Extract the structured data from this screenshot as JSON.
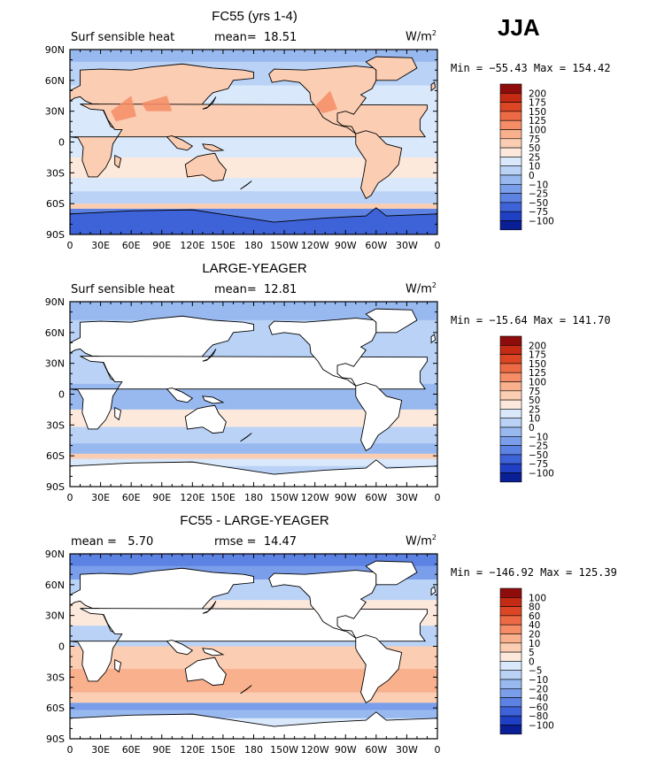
{
  "season": "JJA",
  "axes": {
    "lat_labels": [
      "90N",
      "60N",
      "30N",
      "0",
      "30S",
      "60S",
      "90S"
    ],
    "lon_labels": [
      "0",
      "30E",
      "60E",
      "90E",
      "120E",
      "150E",
      "180",
      "150W",
      "120W",
      "90W",
      "60W",
      "30W",
      "0"
    ]
  },
  "colors": {
    "warm": [
      "#fde9dc",
      "#fbcdb3",
      "#f9b08d",
      "#f68d66",
      "#ee6a44",
      "#dd4624",
      "#c42a14",
      "#8e0c0b"
    ],
    "cool": [
      "#d9e8fb",
      "#b9d2f6",
      "#98b9f0",
      "#7a9eea",
      "#5c82e3",
      "#3e62d7",
      "#1f40c4",
      "#0a1f96"
    ]
  },
  "panels": [
    {
      "title": "FC55 (yrs 1-4)",
      "left_header": "Surf sensible heat",
      "center_header": "mean=  18.51",
      "units": "W/m",
      "units_exp": "2",
      "minmax": "Min = −55.43 Max = 154.42",
      "levels": [
        "200",
        "175",
        "150",
        "125",
        "100",
        "75",
        "50",
        "25",
        "10",
        "0",
        "−10",
        "−25",
        "−50",
        "−75",
        "−100"
      ]
    },
    {
      "title": "LARGE-YEAGER",
      "left_header": "Surf sensible heat",
      "center_header": "mean=  12.81",
      "units": "W/m",
      "units_exp": "2",
      "minmax": "Min = −15.64 Max = 141.70",
      "levels": [
        "200",
        "175",
        "150",
        "125",
        "100",
        "75",
        "50",
        "25",
        "10",
        "0",
        "−10",
        "−25",
        "−50",
        "−75",
        "−100"
      ]
    },
    {
      "title": "FC55 - LARGE-YEAGER",
      "left_header": "mean =   5.70",
      "center_header": "rmse =  14.47",
      "units": "W/m",
      "units_exp": "2",
      "minmax": "Min = −146.92 Max = 125.39",
      "levels": [
        "100",
        "80",
        "60",
        "40",
        "20",
        "10",
        "5",
        "0",
        "−5",
        "−10",
        "−20",
        "−40",
        "−60",
        "−80",
        "−100"
      ]
    }
  ],
  "chart_data": [
    {
      "type": "heatmap",
      "title": "FC55 (yrs 1-4)",
      "variable": "Surf sensible heat",
      "units": "W/m2",
      "mean": 18.51,
      "min": -55.43,
      "max": 154.42,
      "xlim": [
        0,
        360
      ],
      "ylim": [
        -90,
        90
      ],
      "contour_levels": [
        -100,
        -75,
        -50,
        -25,
        -10,
        0,
        10,
        25,
        50,
        75,
        100,
        125,
        150,
        175,
        200
      ]
    },
    {
      "type": "heatmap",
      "title": "LARGE-YEAGER",
      "variable": "Surf sensible heat",
      "units": "W/m2",
      "mean": 12.81,
      "min": -15.64,
      "max": 141.7,
      "xlim": [
        0,
        360
      ],
      "ylim": [
        -90,
        90
      ],
      "contour_levels": [
        -100,
        -75,
        -50,
        -25,
        -10,
        0,
        10,
        25,
        50,
        75,
        100,
        125,
        150,
        175,
        200
      ]
    },
    {
      "type": "heatmap",
      "title": "FC55 - LARGE-YEAGER",
      "units": "W/m2",
      "mean": 5.7,
      "rmse": 14.47,
      "min": -146.92,
      "max": 125.39,
      "xlim": [
        0,
        360
      ],
      "ylim": [
        -90,
        90
      ],
      "contour_levels": [
        -100,
        -80,
        -60,
        -40,
        -20,
        -10,
        -5,
        0,
        5,
        10,
        20,
        40,
        60,
        80,
        100
      ]
    }
  ]
}
